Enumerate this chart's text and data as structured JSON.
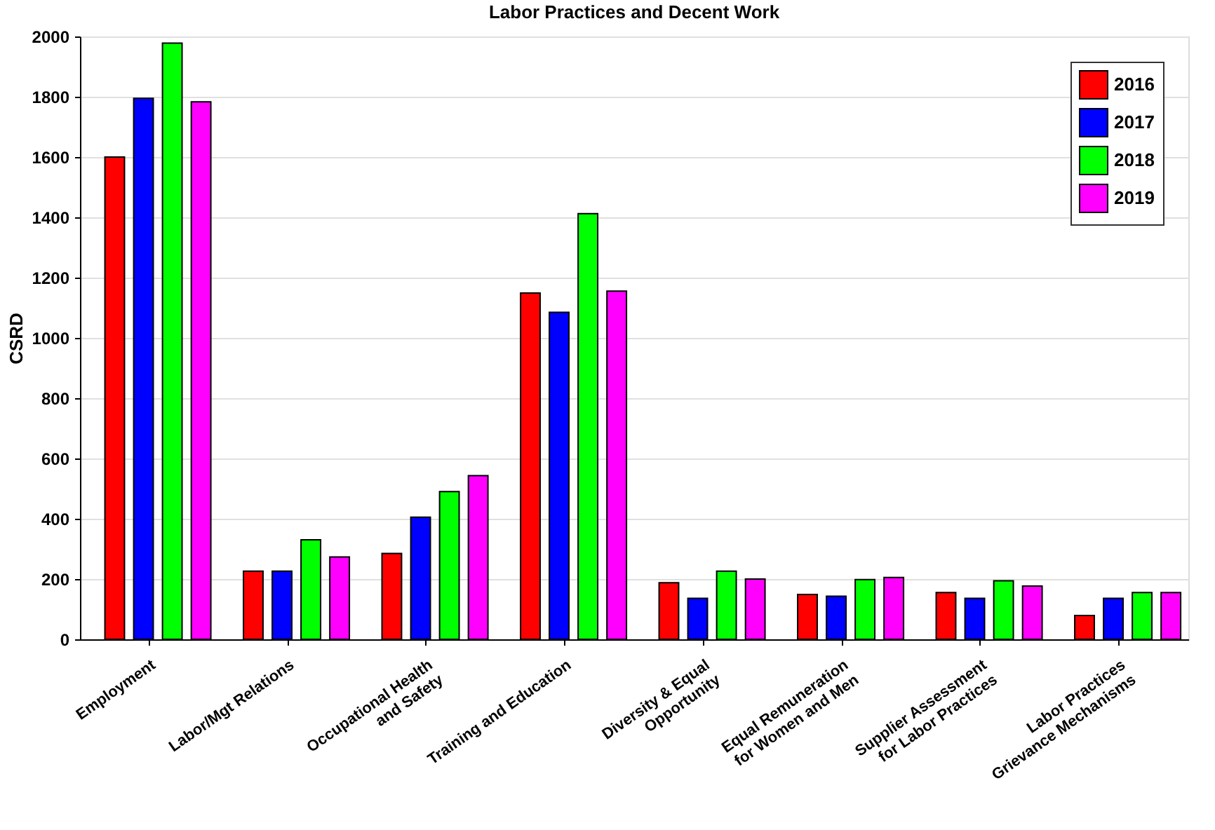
{
  "chart_data": {
    "type": "bar",
    "title": "Labor Practices and Decent Work",
    "ylabel": "CSRD",
    "categories": [
      "Employment",
      "Labor/Mgt Relations",
      "Occupational Health\nand Safety",
      "Training and Education",
      "Diversity & Equal\nOpportunity",
      "Equal Remuneration\nfor Women and Men",
      "Supplier Assessment\nfor Labor Practices",
      "Labor Practices\nGrievance Mechanisms"
    ],
    "series": [
      {
        "name": "2016",
        "color": "#ff0000",
        "values": [
          1600,
          226,
          285,
          1149,
          188,
          149,
          155,
          79
        ]
      },
      {
        "name": "2017",
        "color": "#0000ff",
        "values": [
          1795,
          226,
          405,
          1085,
          136,
          143,
          136,
          136
        ]
      },
      {
        "name": "2018",
        "color": "#00ff00",
        "values": [
          1978,
          330,
          490,
          1412,
          226,
          198,
          194,
          155
        ]
      },
      {
        "name": "2019",
        "color": "#ff00ff",
        "values": [
          1783,
          273,
          543,
          1155,
          200,
          205,
          177,
          155
        ]
      }
    ],
    "ylim": [
      0,
      2000
    ],
    "yticks": [
      0,
      200,
      400,
      600,
      800,
      1000,
      1200,
      1400,
      1600,
      1800,
      2000
    ],
    "grid": "y",
    "legend": "top right"
  }
}
